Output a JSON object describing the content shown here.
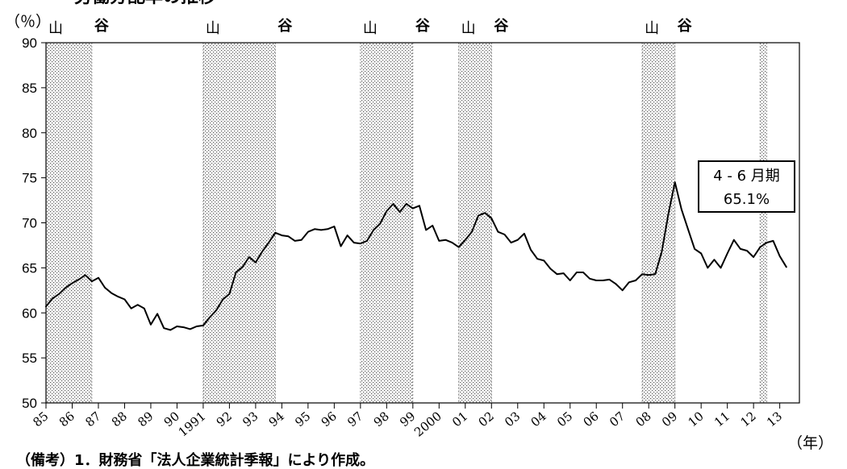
{
  "title": "労働分配率の推移",
  "y_unit": "（％）",
  "x_unit": "（年）",
  "note": "（備考）1．財務省「法人企業統計季報」により作成。",
  "annotation": {
    "line1": "4 - 6 月期",
    "line2": "65.1%"
  },
  "chart_data": {
    "type": "line",
    "title": "労働分配率の推移",
    "ylabel": "（％）",
    "xlabel": "（年）",
    "ylim": [
      50,
      90
    ],
    "y_ticks": [
      50,
      55,
      60,
      65,
      70,
      75,
      80,
      85,
      90
    ],
    "xlim": [
      1985.0,
      2013.75
    ],
    "x_ticks": [
      {
        "year": 1985,
        "label": "85"
      },
      {
        "year": 1986,
        "label": "86"
      },
      {
        "year": 1987,
        "label": "87"
      },
      {
        "year": 1988,
        "label": "88"
      },
      {
        "year": 1989,
        "label": "89"
      },
      {
        "year": 1990,
        "label": "90"
      },
      {
        "year": 1991,
        "label": "1991"
      },
      {
        "year": 1992,
        "label": "92"
      },
      {
        "year": 1993,
        "label": "93"
      },
      {
        "year": 1994,
        "label": "94"
      },
      {
        "year": 1995,
        "label": "95"
      },
      {
        "year": 1996,
        "label": "96"
      },
      {
        "year": 1997,
        "label": "97"
      },
      {
        "year": 1998,
        "label": "98"
      },
      {
        "year": 1999,
        "label": "99"
      },
      {
        "year": 2000,
        "label": "2000"
      },
      {
        "year": 2001,
        "label": "01"
      },
      {
        "year": 2002,
        "label": "02"
      },
      {
        "year": 2003,
        "label": "03"
      },
      {
        "year": 2004,
        "label": "04"
      },
      {
        "year": 2005,
        "label": "05"
      },
      {
        "year": 2006,
        "label": "06"
      },
      {
        "year": 2007,
        "label": "07"
      },
      {
        "year": 2008,
        "label": "08"
      },
      {
        "year": 2009,
        "label": "09"
      },
      {
        "year": 2010,
        "label": "10"
      },
      {
        "year": 2011,
        "label": "11"
      },
      {
        "year": 2012,
        "label": "12"
      },
      {
        "year": 2013,
        "label": "13"
      }
    ],
    "recessions": [
      {
        "start": 1985.0,
        "end": 1986.75,
        "start_label": "山",
        "end_label": "谷"
      },
      {
        "start": 1991.0,
        "end": 1993.75,
        "start_label": "山",
        "end_label": "谷"
      },
      {
        "start": 1997.0,
        "end": 1999.0,
        "start_label": "山",
        "end_label": "谷"
      },
      {
        "start": 2000.75,
        "end": 2002.0,
        "start_label": "山",
        "end_label": "谷"
      },
      {
        "start": 2007.75,
        "end": 2009.0,
        "start_label": "山",
        "end_label": "谷"
      },
      {
        "start": 2012.25,
        "end": 2012.5,
        "start_label": "",
        "end_label": ""
      }
    ],
    "series": [
      {
        "x": [
          1985.0,
          1985.25,
          1985.5,
          1985.75,
          1986.0,
          1986.25,
          1986.5,
          1986.75,
          1987.0,
          1987.25,
          1987.5,
          1987.75,
          1988.0,
          1988.25,
          1988.5,
          1988.75,
          1989.0,
          1989.25,
          1989.5,
          1989.75,
          1990.0,
          1990.25,
          1990.5,
          1990.75,
          1991.0,
          1991.25,
          1991.5,
          1991.75,
          1992.0,
          1992.25,
          1992.5,
          1992.75,
          1993.0,
          1993.25,
          1993.5,
          1993.75,
          1994.0,
          1994.25,
          1994.5,
          1994.75,
          1995.0,
          1995.25,
          1995.5,
          1995.75,
          1996.0,
          1996.25,
          1996.5,
          1996.75,
          1997.0,
          1997.25,
          1997.5,
          1997.75,
          1998.0,
          1998.25,
          1998.5,
          1998.75,
          1999.0,
          1999.25,
          1999.5,
          1999.75,
          2000.0,
          2000.25,
          2000.5,
          2000.75,
          2001.0,
          2001.25,
          2001.5,
          2001.75,
          2002.0,
          2002.25,
          2002.5,
          2002.75,
          2003.0,
          2003.25,
          2003.5,
          2003.75,
          2004.0,
          2004.25,
          2004.5,
          2004.75,
          2005.0,
          2005.25,
          2005.5,
          2005.75,
          2006.0,
          2006.25,
          2006.5,
          2006.75,
          2007.0,
          2007.25,
          2007.5,
          2007.75,
          2008.0,
          2008.25,
          2008.5,
          2008.75,
          2009.0,
          2009.25,
          2009.5,
          2009.75,
          2010.0,
          2010.25,
          2010.5,
          2010.75,
          2011.0,
          2011.25,
          2011.5,
          2011.75,
          2012.0,
          2012.25,
          2012.5,
          2012.75,
          2013.0,
          2013.25
        ],
        "values": [
          60.7,
          61.6,
          62.1,
          62.8,
          63.3,
          63.7,
          64.2,
          63.5,
          63.9,
          62.8,
          62.2,
          61.8,
          61.5,
          60.5,
          60.9,
          60.5,
          58.7,
          59.9,
          58.3,
          58.1,
          58.5,
          58.4,
          58.2,
          58.5,
          58.6,
          59.5,
          60.3,
          61.5,
          62.1,
          64.5,
          65.1,
          66.2,
          65.6,
          66.8,
          67.8,
          68.9,
          68.6,
          68.5,
          68.0,
          68.1,
          69.0,
          69.3,
          69.2,
          69.3,
          69.6,
          67.4,
          68.6,
          67.8,
          67.7,
          68.0,
          69.2,
          69.9,
          71.3,
          72.1,
          71.2,
          72.1,
          71.6,
          71.9,
          69.2,
          69.7,
          68.0,
          68.1,
          67.8,
          67.3,
          68.1,
          69.0,
          70.8,
          71.1,
          70.5,
          69.0,
          68.7,
          67.8,
          68.1,
          68.8,
          67.0,
          66.0,
          65.8,
          64.9,
          64.3,
          64.4,
          63.6,
          64.5,
          64.5,
          63.8,
          63.6,
          63.6,
          63.7,
          63.2,
          62.5,
          63.4,
          63.6,
          64.3,
          64.2,
          64.3,
          66.8,
          71.0,
          74.5,
          71.5,
          69.3,
          67.1,
          66.6,
          65.0,
          65.9,
          65.0,
          66.6,
          68.1,
          67.1,
          66.9,
          66.2,
          67.3,
          67.8,
          68.0,
          66.3,
          65.1
        ]
      }
    ]
  }
}
